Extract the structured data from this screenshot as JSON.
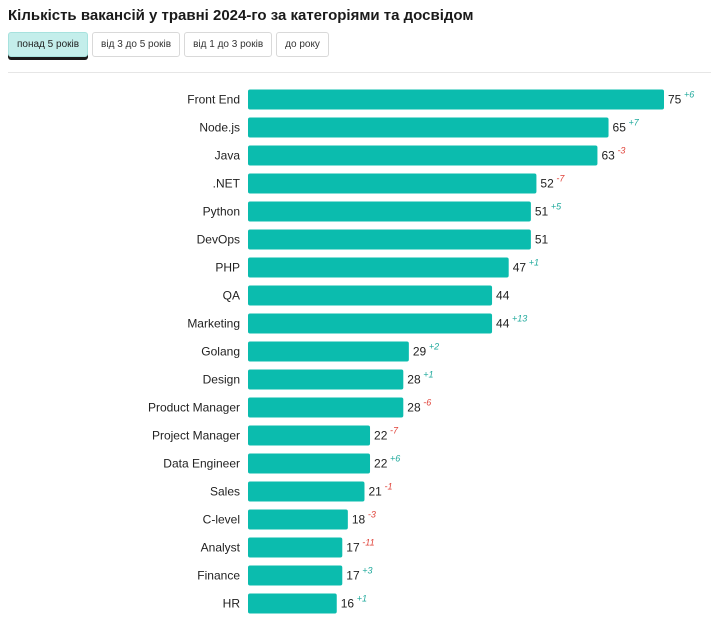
{
  "title": "Кількість вакансій у травні 2024-го за категоріями та досвідом",
  "tabs": [
    {
      "label": "понад 5 років",
      "active": true
    },
    {
      "label": "від 3 до 5 років",
      "active": false
    },
    {
      "label": "від 1 до 3 років",
      "active": false
    },
    {
      "label": "до року",
      "active": false
    }
  ],
  "colors": {
    "bar": "#0bbcae",
    "positive_delta": "#1fa99c",
    "negative_delta": "#e0433a",
    "active_tab": "#c4eeeb"
  },
  "chart_data": {
    "type": "bar",
    "orientation": "horizontal",
    "title": "Кількість вакансій у травні 2024-го за категоріями та досвідом",
    "xlabel": "",
    "ylabel": "",
    "xlim": [
      0,
      75
    ],
    "grid": false,
    "categories": [
      "Front End",
      "Node.js",
      "Java",
      ".NET",
      "Python",
      "DevOps",
      "PHP",
      "QA",
      "Marketing",
      "Golang",
      "Design",
      "Product Manager",
      "Project Manager",
      "Data Engineer",
      "Sales",
      "C-level",
      "Analyst",
      "Finance",
      "HR"
    ],
    "values": [
      75,
      65,
      63,
      52,
      51,
      51,
      47,
      44,
      44,
      29,
      28,
      28,
      22,
      22,
      21,
      18,
      17,
      17,
      16
    ],
    "deltas": [
      "+6",
      "+7",
      "-3",
      "-7",
      "+5",
      "",
      "+1",
      "",
      "+13",
      "+2",
      "+1",
      "-6",
      "-7",
      "+6",
      "-1",
      "-3",
      "-11",
      "+3",
      "+1"
    ]
  }
}
